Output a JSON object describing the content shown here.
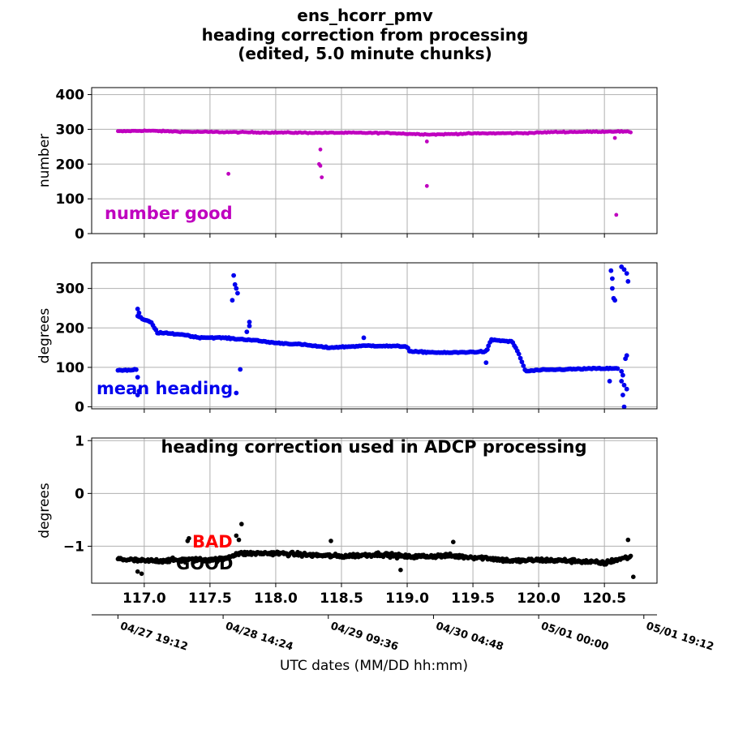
{
  "figure": {
    "title_lines": [
      "ens_hcorr_pmv",
      "heading correction from processing",
      "(edited, 5.0 minute chunks)"
    ],
    "xlabel": "UTC dates (MM/DD hh:mm)",
    "date_ticks": [
      {
        "value": 116.8,
        "label": "04/27 19:12"
      },
      {
        "value": 117.6,
        "label": "04/28 14:24"
      },
      {
        "value": 118.4,
        "label": "04/29 09:36"
      },
      {
        "value": 119.2,
        "label": "04/30 04:48"
      },
      {
        "value": 120.0,
        "label": "05/01 00:00"
      },
      {
        "value": 120.8,
        "label": "05/01 19:12"
      }
    ]
  },
  "chart_data": [
    {
      "type": "scatter",
      "ylabel": "number",
      "annotation": "number good",
      "color": "#bf00bf",
      "xlim": [
        116.6,
        120.9
      ],
      "ylim": [
        0,
        420
      ],
      "xticks": [
        117.0,
        117.5,
        118.0,
        118.5,
        119.0,
        119.5,
        120.0,
        120.5
      ],
      "yticks": [
        0,
        100,
        200,
        300,
        400
      ],
      "grid": true,
      "baseline": [
        [
          116.8,
          294
        ],
        [
          117.0,
          296
        ],
        [
          117.3,
          293
        ],
        [
          117.6,
          292
        ],
        [
          117.9,
          291
        ],
        [
          118.3,
          290
        ],
        [
          118.6,
          290
        ],
        [
          118.9,
          289
        ],
        [
          119.0,
          287
        ],
        [
          119.2,
          285
        ],
        [
          119.5,
          288
        ],
        [
          119.9,
          289
        ],
        [
          120.1,
          292
        ],
        [
          120.4,
          293
        ],
        [
          120.6,
          294
        ],
        [
          120.7,
          292
        ]
      ],
      "outliers": [
        [
          117.64,
          172
        ],
        [
          118.34,
          242
        ],
        [
          118.33,
          200
        ],
        [
          118.34,
          195
        ],
        [
          118.35,
          162
        ],
        [
          119.15,
          137
        ],
        [
          119.15,
          265
        ],
        [
          120.58,
          275
        ],
        [
          120.59,
          54
        ]
      ]
    },
    {
      "type": "scatter",
      "ylabel": "degrees",
      "annotation": "mean heading",
      "color": "#0000ee",
      "xlim": [
        116.6,
        120.9
      ],
      "ylim": [
        -5,
        365
      ],
      "xticks": [
        117.0,
        117.5,
        118.0,
        118.5,
        119.0,
        119.5,
        120.0,
        120.5
      ],
      "yticks": [
        0,
        100,
        200,
        300
      ],
      "grid": true,
      "baseline": [
        [
          116.8,
          93
        ],
        [
          116.9,
          93
        ],
        [
          116.94,
          95
        ],
        [
          116.95,
          230
        ],
        [
          117.0,
          220
        ],
        [
          117.05,
          215
        ],
        [
          117.1,
          188
        ],
        [
          117.3,
          183
        ],
        [
          117.4,
          176
        ],
        [
          117.6,
          175
        ],
        [
          117.7,
          172
        ],
        [
          117.8,
          170
        ],
        [
          117.9,
          166
        ],
        [
          118.0,
          162
        ],
        [
          118.2,
          158
        ],
        [
          118.4,
          150
        ],
        [
          118.7,
          155
        ],
        [
          119.0,
          153
        ],
        [
          119.02,
          140
        ],
        [
          119.3,
          137
        ],
        [
          119.6,
          140
        ],
        [
          119.64,
          170
        ],
        [
          119.8,
          165
        ],
        [
          119.85,
          133
        ],
        [
          119.9,
          90
        ],
        [
          120.0,
          93
        ],
        [
          120.2,
          95
        ],
        [
          120.45,
          97
        ],
        [
          120.6,
          97
        ]
      ],
      "outliers": [
        [
          116.95,
          248
        ],
        [
          116.96,
          238
        ],
        [
          116.95,
          75
        ],
        [
          116.96,
          40
        ],
        [
          116.95,
          30
        ],
        [
          117.68,
          333
        ],
        [
          117.69,
          310
        ],
        [
          117.7,
          300
        ],
        [
          117.71,
          288
        ],
        [
          117.67,
          270
        ],
        [
          117.7,
          35
        ],
        [
          117.73,
          95
        ],
        [
          117.8,
          215
        ],
        [
          117.8,
          205
        ],
        [
          117.78,
          190
        ],
        [
          118.67,
          175
        ],
        [
          119.6,
          112
        ],
        [
          119.61,
          145
        ],
        [
          120.55,
          345
        ],
        [
          120.56,
          325
        ],
        [
          120.56,
          300
        ],
        [
          120.57,
          275
        ],
        [
          120.58,
          270
        ],
        [
          120.63,
          355
        ],
        [
          120.65,
          348
        ],
        [
          120.67,
          338
        ],
        [
          120.68,
          318
        ],
        [
          120.67,
          130
        ],
        [
          120.66,
          122
        ],
        [
          120.63,
          90
        ],
        [
          120.64,
          80
        ],
        [
          120.63,
          65
        ],
        [
          120.65,
          55
        ],
        [
          120.67,
          45
        ],
        [
          120.64,
          30
        ],
        [
          120.65,
          0
        ],
        [
          120.54,
          65
        ]
      ]
    },
    {
      "type": "scatter",
      "title": "heading correction used in ADCP processing",
      "ylabel": "degrees",
      "color": "#000000",
      "xlim": [
        116.6,
        120.9
      ],
      "ylim": [
        -1.7,
        1.05
      ],
      "xticks": [
        117.0,
        117.5,
        118.0,
        118.5,
        119.0,
        119.5,
        120.0,
        120.5
      ],
      "yticks": [
        -1,
        0,
        1
      ],
      "grid": true,
      "good_label": "GOOD",
      "bad_label": "BAD",
      "baseline": [
        [
          116.8,
          -1.24
        ],
        [
          117.0,
          -1.28
        ],
        [
          117.3,
          -1.26
        ],
        [
          117.6,
          -1.25
        ],
        [
          117.7,
          -1.14
        ],
        [
          118.0,
          -1.13
        ],
        [
          118.2,
          -1.16
        ],
        [
          118.5,
          -1.19
        ],
        [
          118.8,
          -1.15
        ],
        [
          119.0,
          -1.2
        ],
        [
          119.3,
          -1.18
        ],
        [
          119.6,
          -1.22
        ],
        [
          119.8,
          -1.28
        ],
        [
          120.0,
          -1.26
        ],
        [
          120.3,
          -1.28
        ],
        [
          120.5,
          -1.32
        ],
        [
          120.6,
          -1.25
        ],
        [
          120.7,
          -1.2
        ]
      ],
      "outliers": [
        [
          117.74,
          -0.58
        ],
        [
          117.7,
          -0.8
        ],
        [
          117.72,
          -0.88
        ],
        [
          116.98,
          -1.52
        ],
        [
          116.95,
          -1.48
        ],
        [
          118.42,
          -0.9
        ],
        [
          119.35,
          -0.92
        ],
        [
          118.95,
          -1.45
        ],
        [
          120.68,
          -0.88
        ],
        [
          120.72,
          -1.58
        ],
        [
          117.34,
          -0.85
        ],
        [
          117.33,
          -0.9
        ]
      ]
    }
  ]
}
